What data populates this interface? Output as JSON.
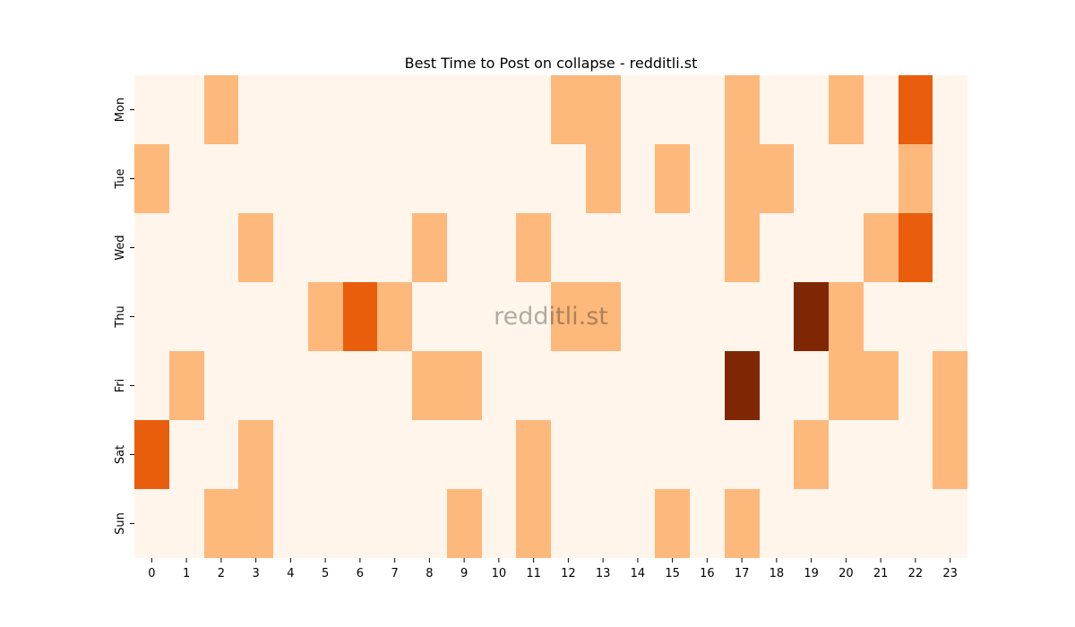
{
  "chart_data": {
    "type": "heatmap",
    "title": "Best Time to Post on collapse - redditli.st",
    "watermark": "redditli.st",
    "xlabel": "",
    "ylabel": "",
    "x_categories": [
      "0",
      "1",
      "2",
      "3",
      "4",
      "5",
      "6",
      "7",
      "8",
      "9",
      "10",
      "11",
      "12",
      "13",
      "14",
      "15",
      "16",
      "17",
      "18",
      "19",
      "20",
      "21",
      "22",
      "23"
    ],
    "y_categories": [
      "Mon",
      "Tue",
      "Wed",
      "Thu",
      "Fri",
      "Sat",
      "Sun"
    ],
    "values": [
      [
        0,
        0,
        1,
        0,
        0,
        0,
        0,
        0,
        0,
        0,
        0,
        0,
        1,
        1,
        0,
        0,
        0,
        1,
        0,
        0,
        1,
        0,
        3,
        0
      ],
      [
        1,
        0,
        0,
        0,
        0,
        0,
        0,
        0,
        0,
        0,
        0,
        0,
        0,
        1,
        0,
        1,
        0,
        1,
        1,
        0,
        0,
        0,
        1,
        0
      ],
      [
        0,
        0,
        0,
        1,
        0,
        0,
        0,
        0,
        1,
        0,
        0,
        1,
        0,
        0,
        0,
        0,
        0,
        1,
        0,
        0,
        0,
        1,
        3,
        0
      ],
      [
        0,
        0,
        0,
        0,
        0,
        1,
        3,
        1,
        0,
        0,
        0,
        0,
        1,
        1,
        0,
        0,
        0,
        0,
        0,
        5,
        1,
        0,
        0,
        0
      ],
      [
        0,
        1,
        0,
        0,
        0,
        0,
        0,
        0,
        1,
        1,
        0,
        0,
        0,
        0,
        0,
        0,
        0,
        5,
        0,
        0,
        1,
        1,
        0,
        1
      ],
      [
        3,
        0,
        0,
        1,
        0,
        0,
        0,
        0,
        0,
        0,
        0,
        1,
        0,
        0,
        0,
        0,
        0,
        0,
        0,
        1,
        0,
        0,
        0,
        1
      ],
      [
        0,
        0,
        1,
        1,
        0,
        0,
        0,
        0,
        0,
        1,
        0,
        1,
        0,
        0,
        0,
        1,
        0,
        1,
        0,
        0,
        0,
        0,
        0,
        0
      ]
    ],
    "colormap": "Oranges",
    "colors": {
      "0": "#fff5eb",
      "1": "#fdb87c",
      "3": "#e95e0d",
      "5": "#7f2704"
    },
    "colorbar": false,
    "grid": false
  }
}
